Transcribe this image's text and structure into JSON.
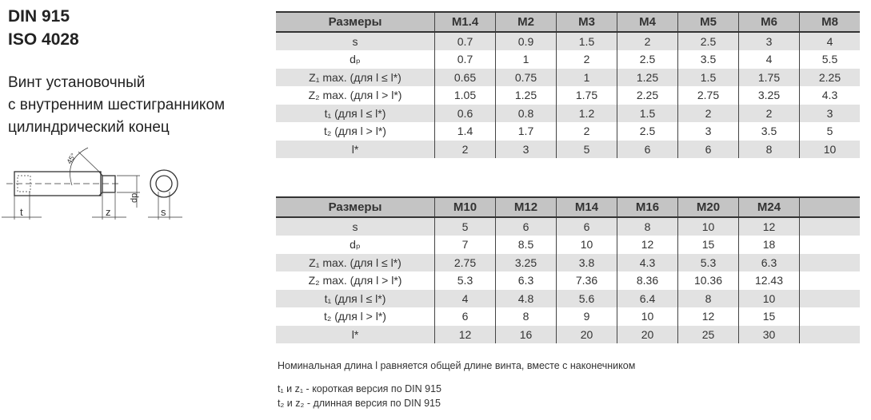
{
  "title": {
    "line1": "DIN 915",
    "line2": "ISO 4028"
  },
  "subtitle": [
    "Винт установочный",
    "с внутренним шестигранником",
    "цилиндрический конец"
  ],
  "drawing": {
    "labels": {
      "t": "t",
      "z": "z",
      "dp": "dp",
      "s": "s",
      "angle": "45°"
    }
  },
  "table1": {
    "header": [
      "Размеры",
      "M1.4",
      "M2",
      "M3",
      "M4",
      "M5",
      "M6",
      "M8"
    ],
    "rows": [
      [
        "s",
        "0.7",
        "0.9",
        "1.5",
        "2",
        "2.5",
        "3",
        "4"
      ],
      [
        "dₚ",
        "0.7",
        "1",
        "2",
        "2.5",
        "3.5",
        "4",
        "5.5"
      ],
      [
        "Z₁ max. (для l ≤ l*)",
        "0.65",
        "0.75",
        "1",
        "1.25",
        "1.5",
        "1.75",
        "2.25"
      ],
      [
        "Z₂ max. (для l > l*)",
        "1.05",
        "1.25",
        "1.75",
        "2.25",
        "2.75",
        "3.25",
        "4.3"
      ],
      [
        "t₁ (для l ≤ l*)",
        "0.6",
        "0.8",
        "1.2",
        "1.5",
        "2",
        "2",
        "3"
      ],
      [
        "t₂ (для l > l*)",
        "1.4",
        "1.7",
        "2",
        "2.5",
        "3",
        "3.5",
        "5"
      ],
      [
        "l*",
        "2",
        "3",
        "5",
        "6",
        "6",
        "8",
        "10"
      ]
    ]
  },
  "table2": {
    "header": [
      "Размеры",
      "M10",
      "M12",
      "M14",
      "M16",
      "M20",
      "M24",
      ""
    ],
    "rows": [
      [
        "s",
        "5",
        "6",
        "6",
        "8",
        "10",
        "12",
        ""
      ],
      [
        "dₚ",
        "7",
        "8.5",
        "10",
        "12",
        "15",
        "18",
        ""
      ],
      [
        "Z₁ max. (для l ≤ l*)",
        "2.75",
        "3.25",
        "3.8",
        "4.3",
        "5.3",
        "6.3",
        ""
      ],
      [
        "Z₂ max. (для l > l*)",
        "5.3",
        "6.3",
        "7.36",
        "8.36",
        "10.36",
        "12.43",
        ""
      ],
      [
        "t₁ (для l ≤ l*)",
        "4",
        "4.8",
        "5.6",
        "6.4",
        "8",
        "10",
        ""
      ],
      [
        "t₂ (для l > l*)",
        "6",
        "8",
        "9",
        "10",
        "12",
        "15",
        ""
      ],
      [
        "l*",
        "12",
        "16",
        "20",
        "20",
        "25",
        "30",
        ""
      ]
    ]
  },
  "notes": [
    "Номинальная длина l равняется общей длине винта, вместе с наконечником",
    "t₁ и z₁ - короткая версия по DIN 915",
    "t₂ и z₂ - длинная версия по DIN 915"
  ]
}
